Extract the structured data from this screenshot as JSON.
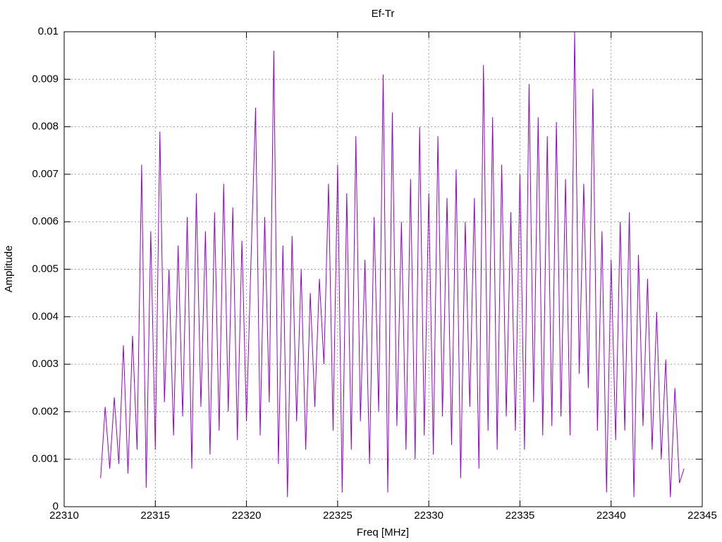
{
  "chart_data": {
    "type": "line",
    "title": "Ef-Tr",
    "x_label": "Freq [MHz]",
    "y_label": "Amplitude",
    "x": [
      22312,
      22312.25,
      22312.5,
      22312.75,
      22313,
      22313.25,
      22313.5,
      22313.75,
      22314,
      22314.25,
      22314.5,
      22314.75,
      22315,
      22315.25,
      22315.5,
      22315.75,
      22316,
      22316.25,
      22316.5,
      22316.75,
      22317,
      22317.25,
      22317.5,
      22317.75,
      22318,
      22318.25,
      22318.5,
      22318.75,
      22319,
      22319.25,
      22319.5,
      22319.75,
      22320,
      22320.25,
      22320.5,
      22320.75,
      22321,
      22321.25,
      22321.5,
      22321.75,
      22322,
      22322.25,
      22322.5,
      22322.75,
      22323,
      22323.25,
      22323.5,
      22323.75,
      22324,
      22324.25,
      22324.5,
      22324.75,
      22325,
      22325.25,
      22325.5,
      22325.75,
      22326,
      22326.25,
      22326.5,
      22326.75,
      22327,
      22327.25,
      22327.5,
      22327.75,
      22328,
      22328.25,
      22328.5,
      22328.75,
      22329,
      22329.25,
      22329.5,
      22329.75,
      22330,
      22330.25,
      22330.5,
      22330.75,
      22331,
      22331.25,
      22331.5,
      22331.75,
      22332,
      22332.25,
      22332.5,
      22332.75,
      22333,
      22333.25,
      22333.5,
      22333.75,
      22334,
      22334.25,
      22334.5,
      22334.75,
      22335,
      22335.25,
      22335.5,
      22335.75,
      22336,
      22336.25,
      22336.5,
      22336.75,
      22337,
      22337.25,
      22337.5,
      22337.75,
      22338,
      22338.25,
      22338.5,
      22338.75,
      22339,
      22339.25,
      22339.5,
      22339.75,
      22340,
      22340.25,
      22340.5,
      22340.75,
      22341,
      22341.25,
      22341.5,
      22341.75,
      22342,
      22342.25,
      22342.5,
      22342.75,
      22343,
      22343.25,
      22343.5,
      22343.75,
      22344
    ],
    "series": [
      {
        "name": "Ef-Tr",
        "color": "#9400d3",
        "values": [
          0.0006,
          0.0021,
          0.0008,
          0.0023,
          0.0009,
          0.0034,
          0.0007,
          0.0036,
          0.0012,
          0.0072,
          0.0004,
          0.0058,
          0.0012,
          0.0079,
          0.0022,
          0.005,
          0.0015,
          0.0055,
          0.0019,
          0.0061,
          0.0008,
          0.0066,
          0.0021,
          0.0058,
          0.0011,
          0.0062,
          0.0016,
          0.0068,
          0.002,
          0.0063,
          0.0014,
          0.0056,
          0.0018,
          0.0052,
          0.0084,
          0.0015,
          0.0061,
          0.0022,
          0.0096,
          0.0009,
          0.0055,
          0.0002,
          0.0057,
          0.0018,
          0.005,
          0.0012,
          0.0045,
          0.0021,
          0.0048,
          0.003,
          0.0068,
          0.0016,
          0.0072,
          0.0003,
          0.0066,
          0.0012,
          0.0078,
          0.0018,
          0.0052,
          0.0009,
          0.0061,
          0.002,
          0.0091,
          0.0003,
          0.0083,
          0.0017,
          0.006,
          0.0012,
          0.0069,
          0.001,
          0.008,
          0.0015,
          0.0066,
          0.0011,
          0.0078,
          0.0019,
          0.0065,
          0.0013,
          0.0071,
          0.0006,
          0.006,
          0.0021,
          0.0065,
          0.0008,
          0.0093,
          0.0016,
          0.0082,
          0.0012,
          0.0072,
          0.0019,
          0.0062,
          0.0016,
          0.007,
          0.0012,
          0.0089,
          0.0022,
          0.0082,
          0.0015,
          0.0078,
          0.0017,
          0.0081,
          0.0019,
          0.0069,
          0.0015,
          0.01,
          0.0028,
          0.0068,
          0.0025,
          0.0088,
          0.0016,
          0.0058,
          0.0003,
          0.0052,
          0.0014,
          0.006,
          0.0016,
          0.0062,
          0.0002,
          0.0053,
          0.0017,
          0.0048,
          0.0012,
          0.0041,
          0.001,
          0.0031,
          0.0002,
          0.0025,
          0.0005,
          0.0008
        ]
      }
    ],
    "xlim": [
      22310,
      22345
    ],
    "xticks": [
      22310,
      22315,
      22320,
      22325,
      22330,
      22335,
      22340,
      22345
    ],
    "ylim": [
      0,
      0.01
    ],
    "yticks": [
      0,
      0.001,
      0.002,
      0.003,
      0.004,
      0.005,
      0.006,
      0.007,
      0.008,
      0.009,
      0.01
    ],
    "grid": true
  }
}
